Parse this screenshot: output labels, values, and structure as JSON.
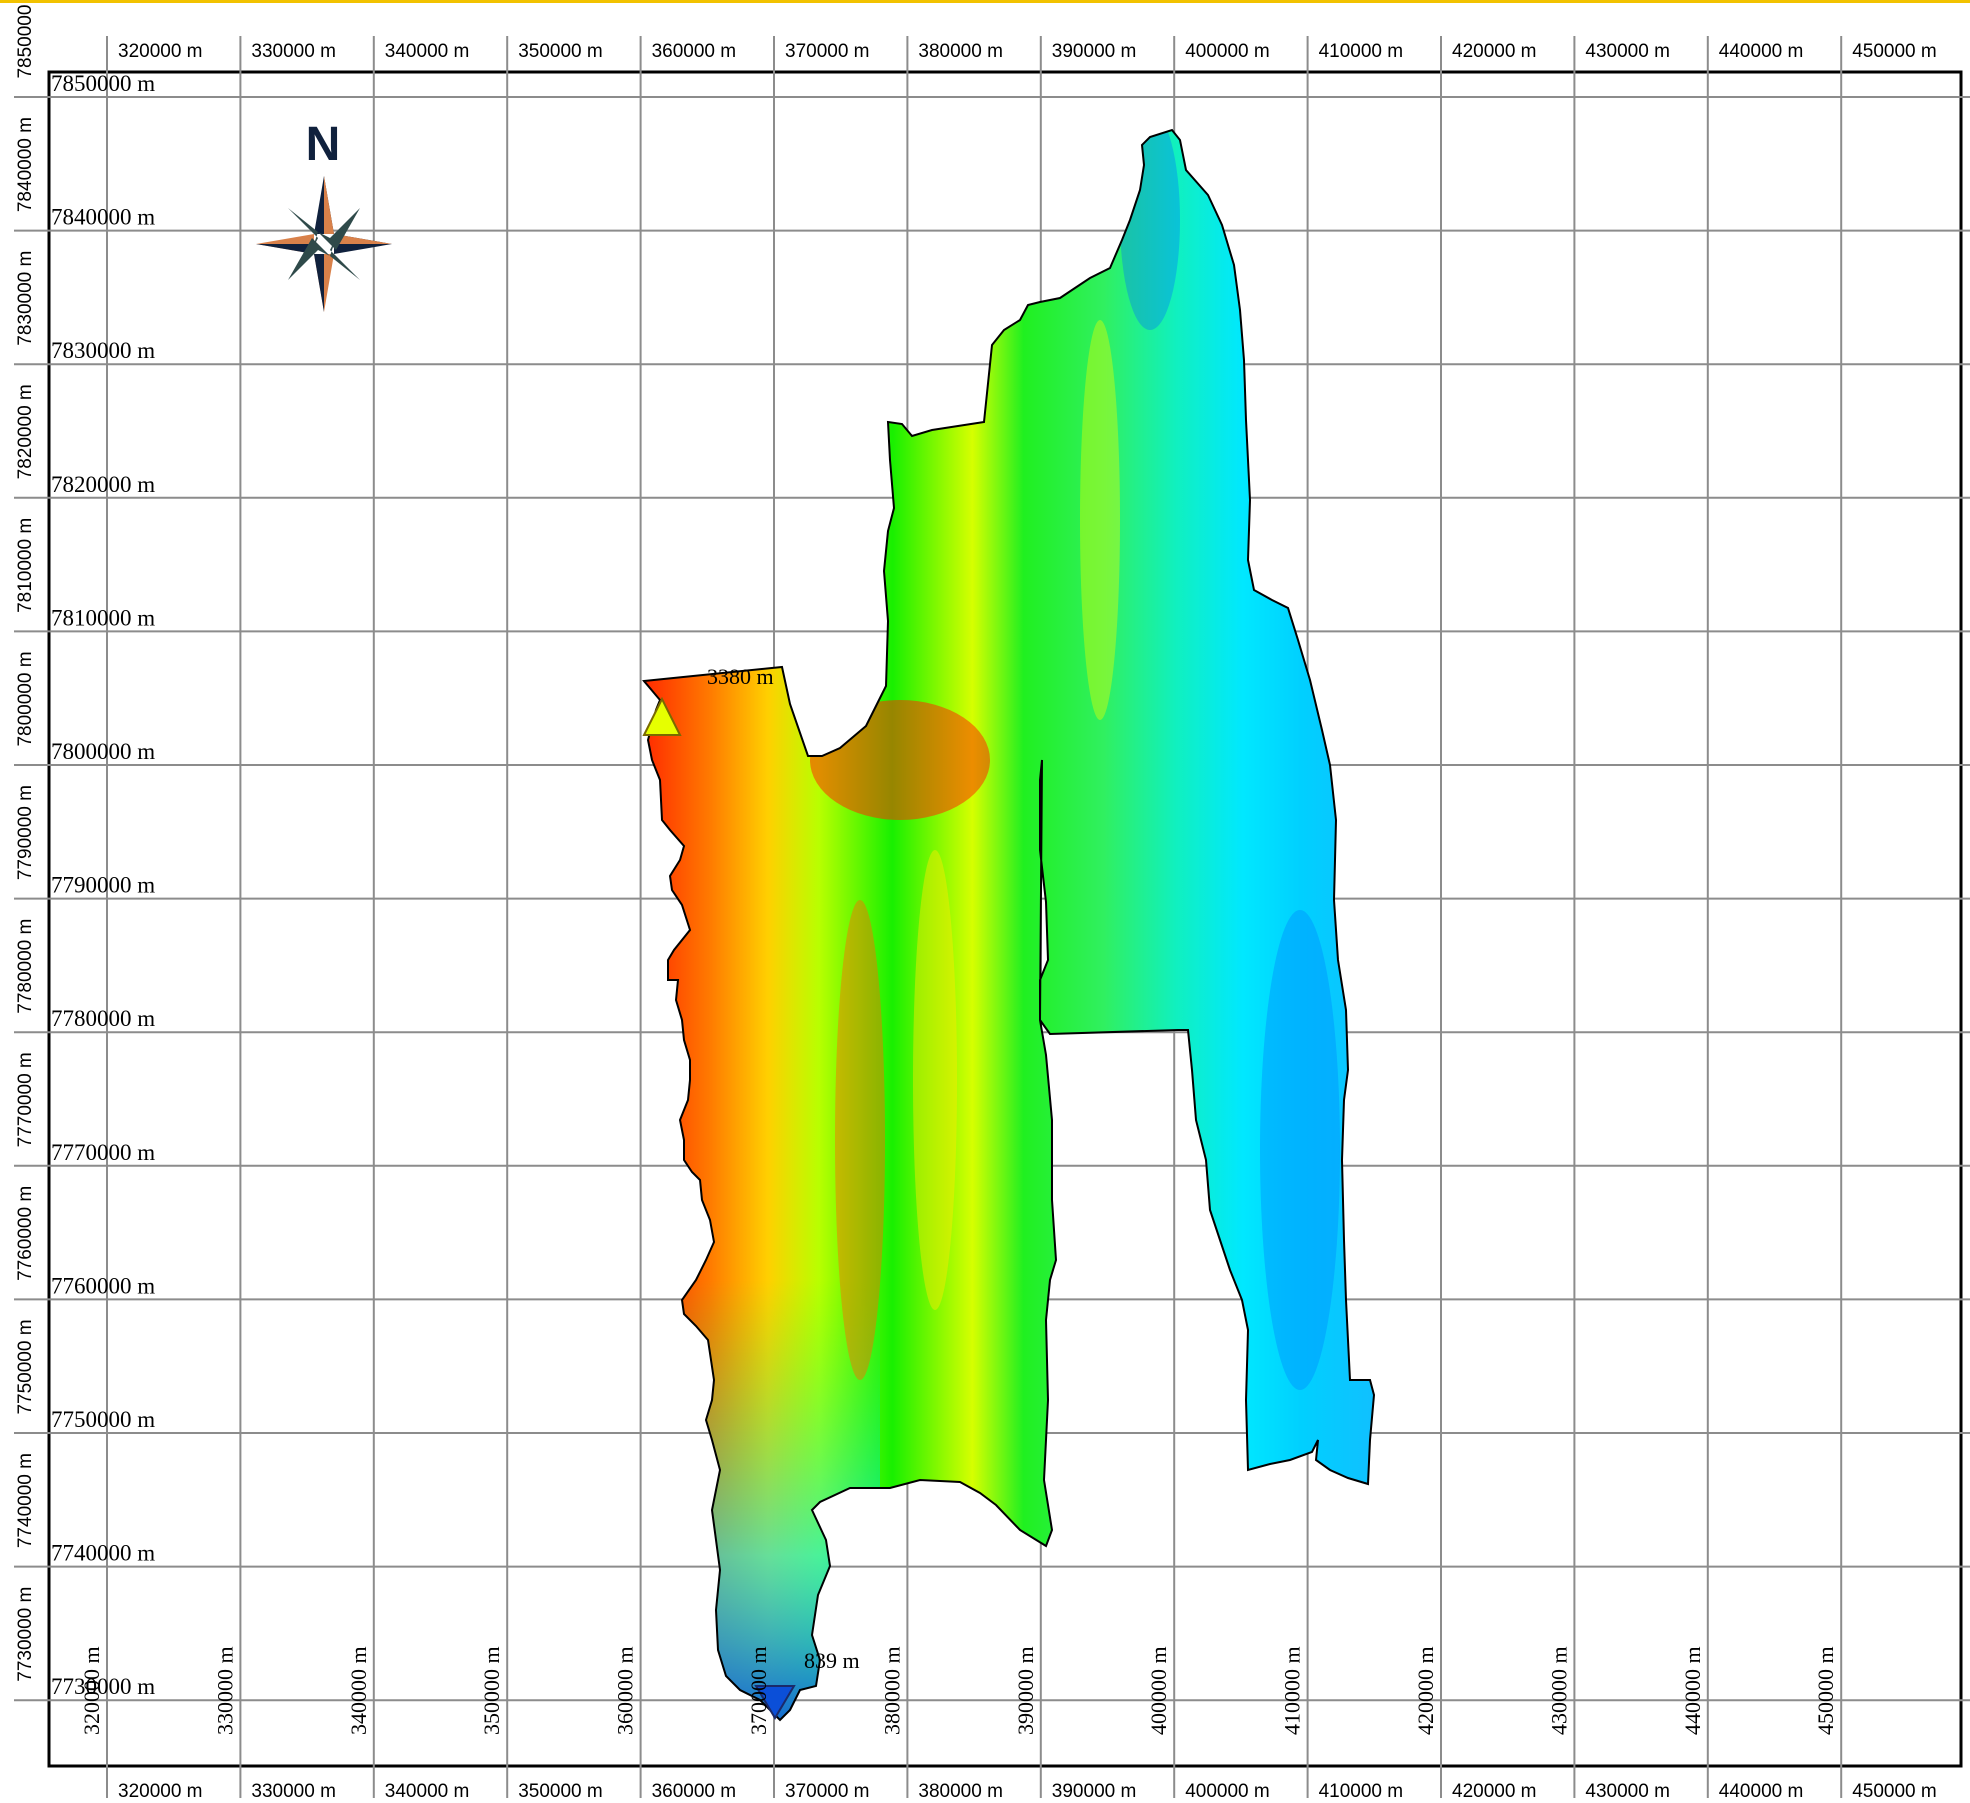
{
  "map": {
    "frame_color": "#f2c200",
    "x_ticks": [
      "320000 m",
      "330000 m",
      "340000 m",
      "350000 m",
      "360000 m",
      "370000 m",
      "380000 m",
      "390000 m",
      "400000 m",
      "410000 m",
      "420000 m",
      "430000 m",
      "440000 m",
      "450000 m"
    ],
    "y_ticks": [
      "7850000 m",
      "7840000 m",
      "7830000 m",
      "7820000 m",
      "7810000 m",
      "7800000 m",
      "7790000 m",
      "7780000 m",
      "7770000 m",
      "7760000 m",
      "7750000 m",
      "7740000 m",
      "7730000 m"
    ],
    "north_label": "N",
    "north_icon": "compass-rose-icon",
    "max_elevation_label": "3380 m",
    "min_elevation_label": "839 m",
    "max_marker_icon": "triangle-up-icon",
    "min_marker_icon": "triangle-down-icon",
    "elevation_colors": [
      "#0b4fd8",
      "#00e6ff",
      "#00e640",
      "#e6ff00",
      "#ff2a00"
    ]
  }
}
